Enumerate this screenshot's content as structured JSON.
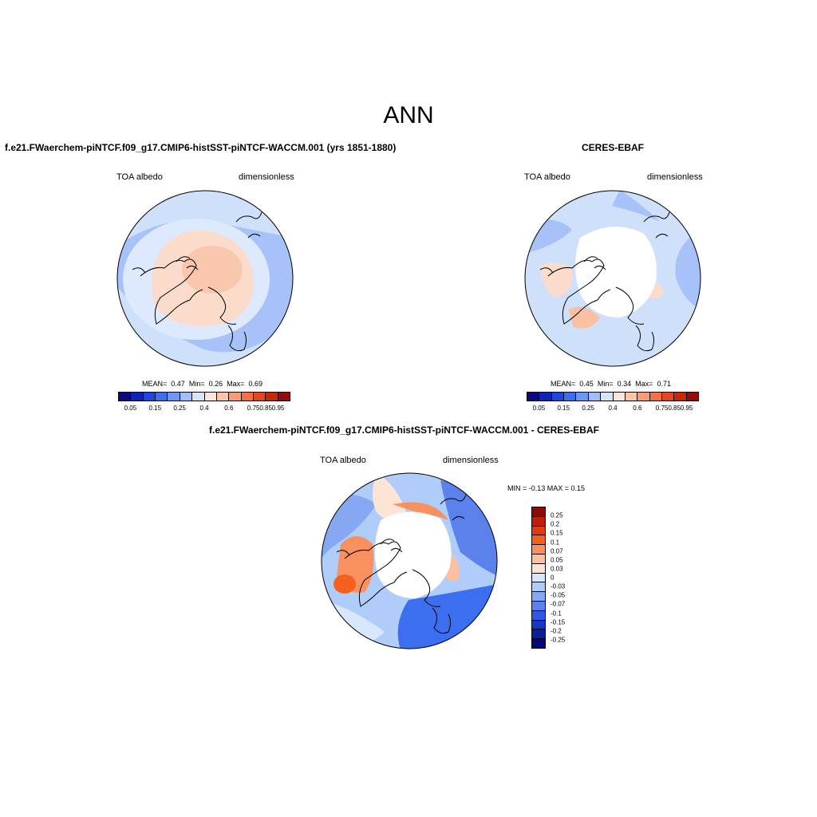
{
  "figure": {
    "title": "ANN"
  },
  "panels": {
    "model": {
      "title": "f.e21.FWaerchem-piNTCF.f09_g17.CMIP6-histSST-piNTCF-WACCM.001 (yrs 1851-1880)",
      "left_label": "TOA albedo",
      "right_label": "dimensionless",
      "stats": {
        "mean_label": "MEAN=",
        "mean": "0.47",
        "min_label": "Min=",
        "min": "0.26",
        "max_label": "Max=",
        "max": "0.69"
      }
    },
    "obs": {
      "title": "CERES-EBAF",
      "left_label": "TOA albedo",
      "right_label": "dimensionless",
      "stats": {
        "mean_label": "MEAN=",
        "mean": "0.45",
        "min_label": "Min=",
        "min": "0.34",
        "max_label": "Max=",
        "max": "0.71"
      }
    },
    "diff": {
      "title": "f.e21.FWaerchem-piNTCF.f09_g17.CMIP6-histSST-piNTCF-WACCM.001 - CERES-EBAF",
      "left_label": "TOA albedo",
      "right_label": "dimensionless",
      "stats_text": "MIN =  -0.13 MAX =   0.15"
    }
  },
  "colorbars": {
    "abs": {
      "colors": [
        "#0a0a80",
        "#0f23b4",
        "#1e46dc",
        "#3c6ef0",
        "#6e96f5",
        "#a0bef8",
        "#d2e6fc",
        "#fde6d6",
        "#fcc3a8",
        "#f99b78",
        "#f46e4a",
        "#e6461e",
        "#c8280a",
        "#960a0a"
      ],
      "tick_labels": [
        "0.05",
        "0.15",
        "0.25",
        "0.4",
        "0.6",
        "0.75",
        "0.85",
        "0.95"
      ]
    },
    "diff": {
      "colors": [
        "#8c0a0a",
        "#be1e0a",
        "#e03c10",
        "#f5601e",
        "#f99060",
        "#fcc0a0",
        "#fde4d4",
        "#d8e8fc",
        "#b0ccf8",
        "#86a8f2",
        "#5a82ea",
        "#2e5ae2",
        "#1438c8",
        "#0a1ea0",
        "#060a78"
      ],
      "tick_labels": [
        "0.25",
        "0.2",
        "0.15",
        "0.1",
        "0.07",
        "0.05",
        "0.03",
        "0",
        "-0.03",
        "-0.05",
        "-0.07",
        "-0.1",
        "-0.15",
        "-0.2",
        "-0.25"
      ]
    }
  }
}
